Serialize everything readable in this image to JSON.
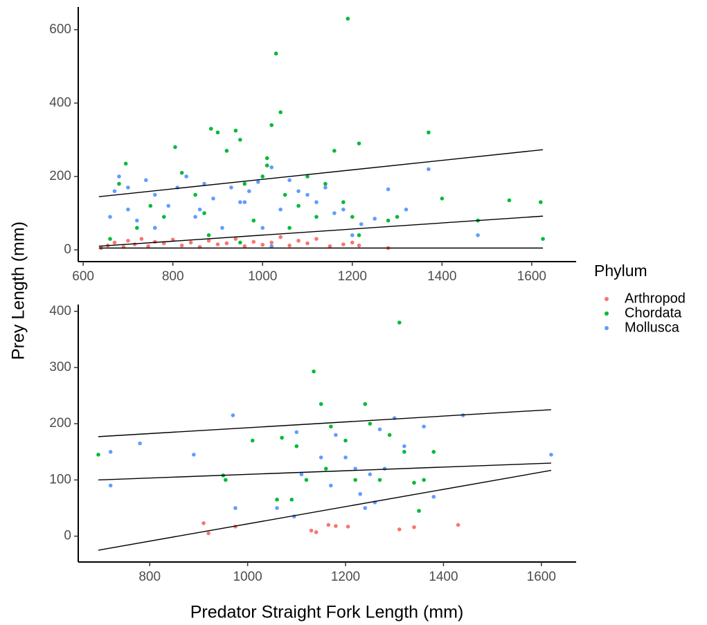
{
  "xlabel": "Predator Straight Fork Length (mm)",
  "ylabel": "Prey Length (mm)",
  "chart_data": [
    {
      "type": "scatter",
      "legend_title": "Phylum",
      "xlim": [
        589,
        1699
      ],
      "ylim": [
        -32,
        662
      ],
      "xticks": [
        600,
        800,
        1000,
        1200,
        1400,
        1600
      ],
      "yticks": [
        0,
        200,
        400,
        600
      ],
      "series": [
        {
          "name": "Arthropod",
          "color": "#F8766D",
          "x": [
            640,
            655,
            670,
            690,
            700,
            715,
            730,
            745,
            760,
            780,
            800,
            820,
            840,
            860,
            880,
            900,
            920,
            940,
            960,
            980,
            1000,
            1020,
            1040,
            1060,
            1080,
            1100,
            1120,
            1150,
            1180,
            1200,
            1215,
            1280
          ],
          "values": [
            5,
            12,
            20,
            8,
            25,
            15,
            30,
            10,
            22,
            18,
            28,
            12,
            20,
            8,
            25,
            15,
            18,
            30,
            10,
            22,
            14,
            20,
            35,
            12,
            25,
            18,
            30,
            10,
            15,
            20,
            12,
            5
          ]
        },
        {
          "name": "Chordata",
          "color": "#00BA38",
          "x": [
            660,
            680,
            695,
            720,
            750,
            780,
            805,
            820,
            850,
            870,
            885,
            900,
            920,
            940,
            950,
            960,
            980,
            1000,
            1010,
            1020,
            1030,
            1040,
            1050,
            1060,
            1080,
            1100,
            1120,
            1140,
            1160,
            1180,
            1190,
            1200,
            1215,
            1280,
            1300,
            1370,
            1400,
            1480,
            1550,
            1620,
            1625,
            1010,
            950,
            880,
            1215
          ],
          "values": [
            30,
            180,
            235,
            60,
            120,
            90,
            280,
            210,
            150,
            100,
            330,
            320,
            270,
            325,
            300,
            180,
            80,
            200,
            250,
            340,
            535,
            375,
            150,
            60,
            120,
            200,
            90,
            180,
            270,
            130,
            630,
            90,
            290,
            80,
            90,
            320,
            140,
            80,
            135,
            130,
            30,
            230,
            20,
            40,
            40
          ]
        },
        {
          "name": "Mollusca",
          "color": "#619CFF",
          "x": [
            660,
            670,
            680,
            700,
            720,
            740,
            760,
            790,
            810,
            830,
            850,
            870,
            890,
            910,
            930,
            950,
            970,
            990,
            1000,
            1020,
            1040,
            1060,
            1080,
            1100,
            1120,
            1140,
            1160,
            1180,
            1200,
            1220,
            1250,
            1280,
            1320,
            1370,
            1480,
            1020,
            960,
            860,
            760,
            700
          ],
          "values": [
            90,
            160,
            200,
            110,
            80,
            190,
            150,
            120,
            170,
            200,
            90,
            180,
            140,
            60,
            170,
            130,
            160,
            185,
            60,
            225,
            110,
            190,
            160,
            150,
            130,
            170,
            100,
            110,
            40,
            70,
            85,
            165,
            110,
            220,
            40,
            10,
            130,
            110,
            60,
            170
          ]
        }
      ],
      "lines": [
        {
          "color": "#000000",
          "x": [
            635,
            1625
          ],
          "values": [
            145,
            273
          ]
        },
        {
          "color": "#000000",
          "x": [
            635,
            1625
          ],
          "values": [
            10,
            92
          ]
        },
        {
          "color": "#000000",
          "x": [
            635,
            1625
          ],
          "values": [
            5,
            5
          ]
        }
      ]
    },
    {
      "type": "scatter",
      "xlim": [
        654,
        1671
      ],
      "ylim": [
        -46,
        412
      ],
      "xticks": [
        800,
        1000,
        1200,
        1400,
        1600
      ],
      "yticks": [
        0,
        100,
        200,
        300,
        400
      ],
      "series": [
        {
          "name": "Arthropod",
          "color": "#F8766D",
          "x": [
            910,
            920,
            975,
            1130,
            1140,
            1165,
            1180,
            1205,
            1310,
            1340,
            1430
          ],
          "values": [
            23,
            5,
            17,
            10,
            7,
            20,
            18,
            17,
            12,
            16,
            20
          ]
        },
        {
          "name": "Chordata",
          "color": "#00BA38",
          "x": [
            695,
            950,
            955,
            1010,
            1060,
            1070,
            1090,
            1100,
            1120,
            1135,
            1150,
            1160,
            1170,
            1200,
            1220,
            1240,
            1250,
            1270,
            1290,
            1310,
            1320,
            1340,
            1350,
            1360,
            1380
          ],
          "values": [
            145,
            108,
            100,
            170,
            65,
            175,
            65,
            160,
            100,
            293,
            235,
            120,
            195,
            170,
            100,
            235,
            200,
            100,
            180,
            380,
            150,
            95,
            45,
            100,
            150
          ]
        },
        {
          "name": "Mollusca",
          "color": "#619CFF",
          "x": [
            720,
            720,
            780,
            890,
            970,
            975,
            1060,
            1095,
            1100,
            1110,
            1150,
            1170,
            1180,
            1200,
            1220,
            1230,
            1240,
            1250,
            1260,
            1270,
            1280,
            1300,
            1320,
            1360,
            1380,
            1440,
            1620
          ],
          "values": [
            150,
            90,
            165,
            145,
            215,
            50,
            50,
            35,
            185,
            110,
            140,
            90,
            180,
            140,
            120,
            75,
            50,
            110,
            60,
            190,
            120,
            210,
            160,
            195,
            70,
            215,
            145
          ]
        }
      ],
      "lines": [
        {
          "color": "#000000",
          "x": [
            695,
            1620
          ],
          "values": [
            177,
            225
          ]
        },
        {
          "color": "#000000",
          "x": [
            695,
            1620
          ],
          "values": [
            100,
            130
          ]
        },
        {
          "color": "#000000",
          "x": [
            695,
            1620
          ],
          "values": [
            -25,
            117
          ]
        }
      ]
    }
  ]
}
